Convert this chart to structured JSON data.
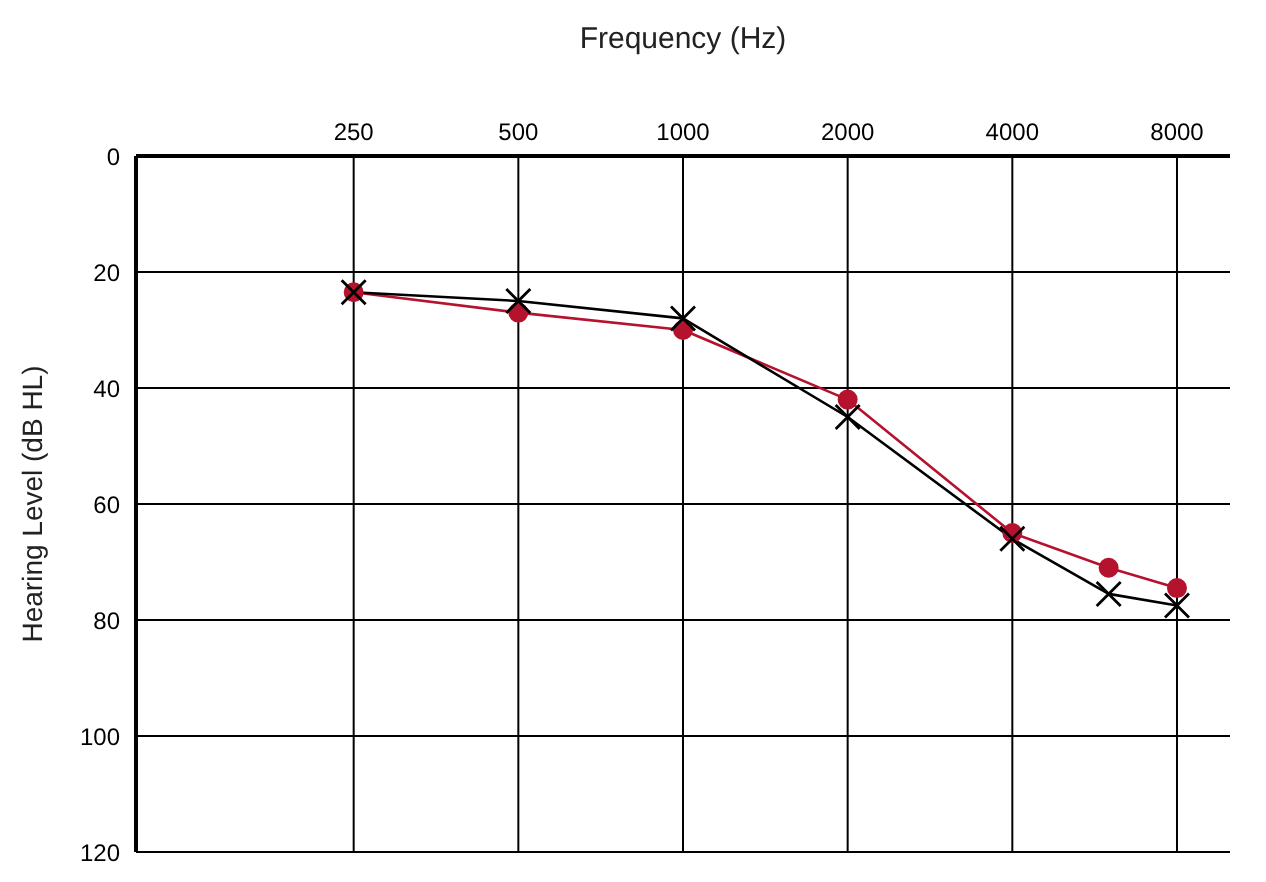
{
  "chart_data": {
    "type": "line",
    "xlabel": "Frequency (Hz)",
    "ylabel": "Hearing Level (dB HL)",
    "x": [
      250,
      500,
      1000,
      2000,
      4000,
      6000,
      8000
    ],
    "series": [
      {
        "color": "#b5122e",
        "marker": "circle",
        "values": [
          23.5,
          27,
          30,
          42,
          65,
          71,
          74.5
        ]
      },
      {
        "color": "#000000",
        "marker": "cross",
        "values": [
          23.5,
          25,
          28,
          45,
          66,
          75.5,
          77.5
        ]
      }
    ],
    "log": "x",
    "xlim": [
      100,
      10000
    ],
    "xticks": [
      250,
      500,
      1000,
      2000,
      4000,
      8000
    ],
    "ylim": [
      120,
      0
    ],
    "yticks": [
      0,
      20,
      40,
      60,
      80,
      100,
      120
    ],
    "grid": true,
    "line_style": "solid"
  }
}
